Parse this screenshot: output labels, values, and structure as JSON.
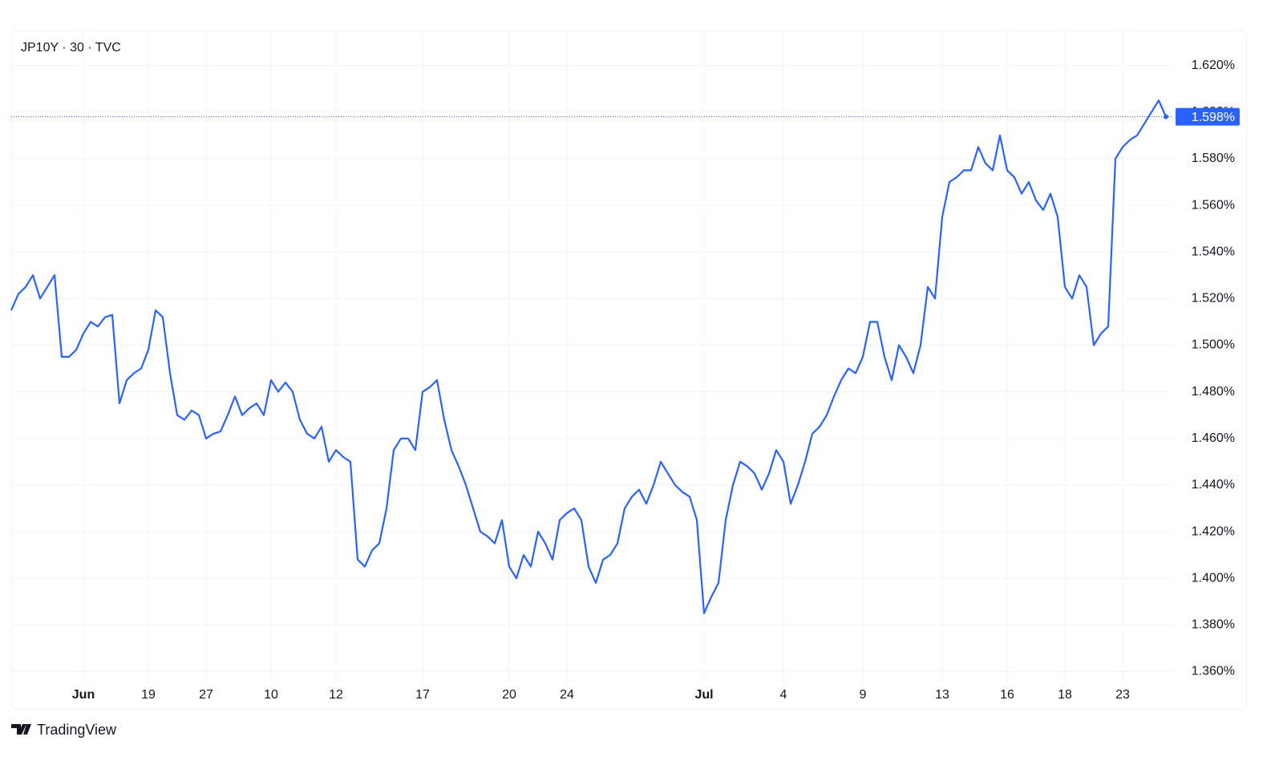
{
  "chart_data": {
    "type": "line",
    "title": "JP10Y · 30 · TVC",
    "branding": "TradingView",
    "color": "#2962ff",
    "grid": true,
    "values": [
      1.515,
      1.522,
      1.525,
      1.53,
      1.52,
      1.525,
      1.53,
      1.495,
      1.495,
      1.498,
      1.505,
      1.51,
      1.508,
      1.512,
      1.513,
      1.475,
      1.485,
      1.488,
      1.49,
      1.498,
      1.515,
      1.512,
      1.488,
      1.47,
      1.468,
      1.472,
      1.47,
      1.46,
      1.462,
      1.463,
      1.47,
      1.478,
      1.47,
      1.473,
      1.475,
      1.47,
      1.485,
      1.48,
      1.484,
      1.48,
      1.468,
      1.462,
      1.46,
      1.465,
      1.45,
      1.455,
      1.452,
      1.45,
      1.408,
      1.405,
      1.412,
      1.415,
      1.43,
      1.455,
      1.46,
      1.46,
      1.455,
      1.48,
      1.482,
      1.485,
      1.468,
      1.455,
      1.448,
      1.44,
      1.43,
      1.42,
      1.418,
      1.415,
      1.425,
      1.405,
      1.4,
      1.41,
      1.405,
      1.42,
      1.415,
      1.408,
      1.425,
      1.428,
      1.43,
      1.425,
      1.405,
      1.398,
      1.408,
      1.41,
      1.415,
      1.43,
      1.435,
      1.438,
      1.432,
      1.44,
      1.45,
      1.445,
      1.44,
      1.437,
      1.435,
      1.425,
      1.385,
      1.392,
      1.398,
      1.425,
      1.44,
      1.45,
      1.448,
      1.445,
      1.438,
      1.445,
      1.455,
      1.45,
      1.432,
      1.44,
      1.45,
      1.462,
      1.465,
      1.47,
      1.478,
      1.485,
      1.49,
      1.488,
      1.495,
      1.51,
      1.51,
      1.495,
      1.485,
      1.5,
      1.495,
      1.488,
      1.5,
      1.525,
      1.52,
      1.555,
      1.57,
      1.572,
      1.575,
      1.575,
      1.585,
      1.578,
      1.575,
      1.59,
      1.575,
      1.572,
      1.565,
      1.57,
      1.562,
      1.558,
      1.565,
      1.555,
      1.525,
      1.52,
      1.53,
      1.525,
      1.5,
      1.505,
      1.508,
      1.58,
      1.585,
      1.588,
      1.59,
      1.595,
      1.6,
      1.605,
      1.598
    ],
    "xlim": [
      0,
      161
    ],
    "xticks": [
      {
        "value": 10,
        "label": "Jun"
      },
      19,
      27,
      {
        "value": 36,
        "label": "10"
      },
      {
        "value": 45,
        "label": "12"
      },
      {
        "value": 57,
        "label": "17"
      },
      {
        "value": 69,
        "label": "20"
      },
      {
        "value": 77,
        "label": "24"
      },
      {
        "value": 96,
        "label": "Jul"
      },
      {
        "value": 107,
        "label": "4"
      },
      {
        "value": 118,
        "label": "9"
      },
      {
        "value": 129,
        "label": "13"
      },
      {
        "value": 138,
        "label": "16"
      },
      {
        "value": 146,
        "label": "18"
      },
      {
        "value": 154,
        "label": "23"
      }
    ],
    "ylim": [
      1.355,
      1.635
    ],
    "yticks": [
      {
        "value": 1.36,
        "label": "1.360%"
      },
      {
        "value": 1.38,
        "label": "1.380%"
      },
      {
        "value": 1.4,
        "label": "1.400%"
      },
      {
        "value": 1.42,
        "label": "1.420%"
      },
      {
        "value": 1.44,
        "label": "1.440%"
      },
      {
        "value": 1.46,
        "label": "1.460%"
      },
      {
        "value": 1.48,
        "label": "1.480%"
      },
      {
        "value": 1.5,
        "label": "1.500%"
      },
      {
        "value": 1.52,
        "label": "1.520%"
      },
      {
        "value": 1.54,
        "label": "1.540%"
      },
      {
        "value": 1.56,
        "label": "1.560%"
      },
      {
        "value": 1.58,
        "label": "1.580%"
      },
      {
        "value": 1.6,
        "label": "1.600%"
      },
      {
        "value": 1.62,
        "label": "1.620%"
      }
    ],
    "last_price": {
      "value": 1.598,
      "label": "1.598%"
    }
  }
}
